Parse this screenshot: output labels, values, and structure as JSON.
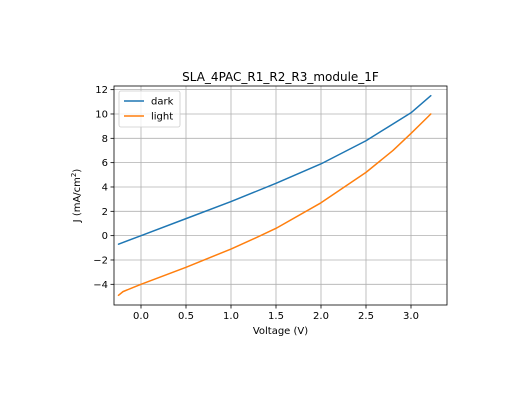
{
  "chart_data": {
    "type": "line",
    "title": "SLA_4PAC_R1_R2_R3_module_1F",
    "xlabel": "Voltage (V)",
    "ylabel_main": "J (mA/cm",
    "ylabel_sup": "2",
    "ylabel_tail": ")",
    "xlim": [
      -0.3,
      3.4
    ],
    "ylim": [
      -5.7,
      12.3
    ],
    "xticks": [
      0.0,
      0.5,
      1.0,
      1.5,
      2.0,
      2.5,
      3.0
    ],
    "xtick_labels": [
      "0.0",
      "0.5",
      "1.0",
      "1.5",
      "2.0",
      "2.5",
      "3.0"
    ],
    "yticks": [
      -4,
      -2,
      0,
      2,
      4,
      6,
      8,
      10,
      12
    ],
    "ytick_labels": [
      "−4",
      "−2",
      "0",
      "2",
      "4",
      "6",
      "8",
      "10",
      "12"
    ],
    "grid": true,
    "legend_position": "top-left",
    "series": [
      {
        "name": "dark",
        "color": "#1f77b4",
        "x": [
          -0.25,
          0.0,
          0.5,
          1.0,
          1.5,
          2.0,
          2.5,
          3.0,
          3.22
        ],
        "y": [
          -0.7,
          0.0,
          1.4,
          2.8,
          4.3,
          5.9,
          7.8,
          10.1,
          11.5
        ]
      },
      {
        "name": "light",
        "color": "#ff7f0e",
        "x": [
          -0.25,
          -0.2,
          -0.1,
          0.0,
          0.5,
          1.0,
          1.3,
          1.5,
          2.0,
          2.5,
          2.8,
          3.0,
          3.22
        ],
        "y": [
          -4.9,
          -4.6,
          -4.3,
          -4.0,
          -2.6,
          -1.1,
          -0.1,
          0.6,
          2.7,
          5.2,
          7.0,
          8.4,
          10.0
        ]
      }
    ]
  }
}
